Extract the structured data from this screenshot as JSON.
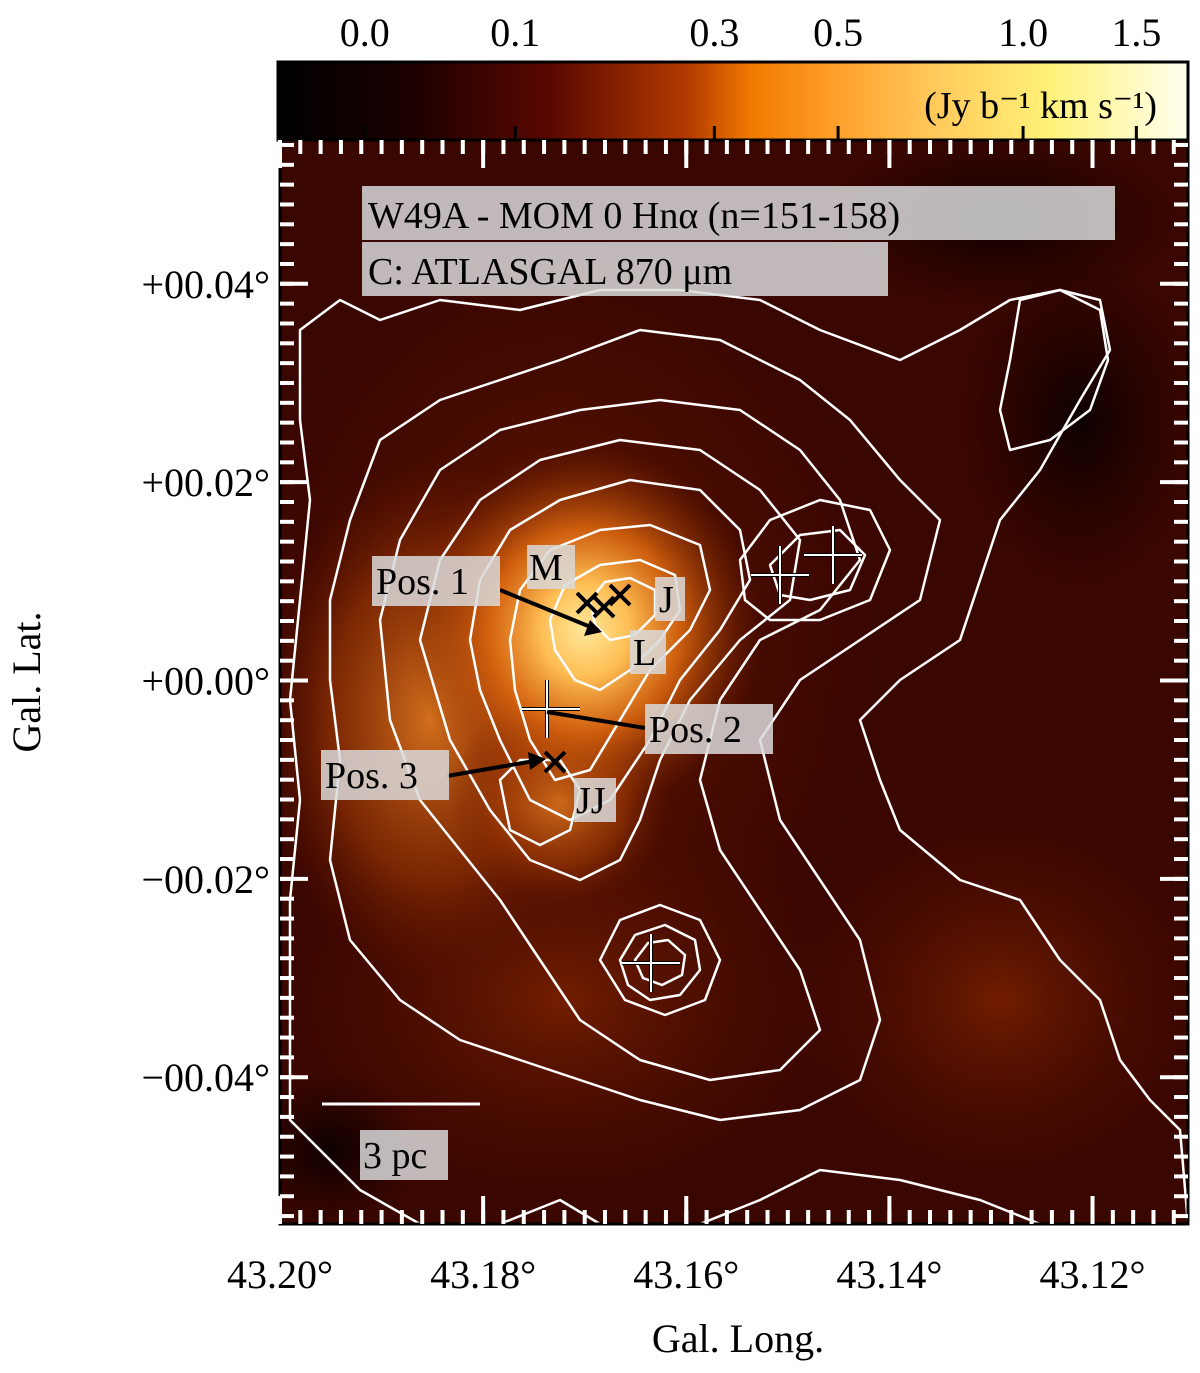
{
  "chart_data": {
    "type": "heatmap",
    "title": "W49A - MOM 0 Hnα (n=151-158)",
    "subtitle": "C: ATLASGAL 870 μm",
    "xlabel": "Gal. Long.",
    "ylabel": "Gal. Lat.",
    "x_ticks": [
      "43.20°",
      "43.18°",
      "43.16°",
      "43.14°",
      "43.12°"
    ],
    "x_tick_values": [
      43.2,
      43.18,
      43.16,
      43.14,
      43.12
    ],
    "y_ticks": [
      "+00.04°",
      "+00.02°",
      "+00.00°",
      "−00.02°",
      "−00.04°"
    ],
    "y_tick_values": [
      0.04,
      0.02,
      0.0,
      -0.02,
      -0.04
    ],
    "xlim": [
      43.2,
      43.1106
    ],
    "ylim": [
      -0.0548,
      0.0545
    ],
    "colorbar": {
      "label": "(Jy b⁻¹ km s⁻¹)",
      "ticks": [
        "0.0",
        "0.1",
        "0.3",
        "0.5",
        "1.0",
        "1.5"
      ],
      "tick_values": [
        0.0,
        0.1,
        0.3,
        0.5,
        1.0,
        1.5
      ],
      "range": [
        -0.05,
        1.8
      ]
    },
    "contours": {
      "color": "#ffffff",
      "source": "ATLASGAL 870 μm"
    },
    "sources": [
      {
        "marker": "x",
        "l": 43.1714,
        "b": 0.0082,
        "name": "M"
      },
      {
        "marker": "x",
        "l": 43.1695,
        "b": 0.0078,
        "name": "L"
      },
      {
        "marker": "x",
        "l": 43.168,
        "b": 0.009,
        "name": "J"
      },
      {
        "marker": "x",
        "l": 43.1753,
        "b": -0.0082,
        "name": "JJ"
      },
      {
        "marker": "+",
        "l": 43.1764,
        "b": -0.0031
      },
      {
        "marker": "+",
        "l": 43.1518,
        "b": 0.0113
      },
      {
        "marker": "+",
        "l": 43.1466,
        "b": 0.0133
      },
      {
        "marker": "+",
        "l": 43.1651,
        "b": -0.0286
      }
    ],
    "positions": [
      {
        "label": "Pos. 1",
        "l": 43.1706,
        "b": 0.0065
      },
      {
        "label": "Pos. 2",
        "l": 43.1764,
        "b": -0.0031
      },
      {
        "label": "Pos. 3",
        "l": 43.1753,
        "b": -0.0082
      }
    ],
    "scale_bar": {
      "label": "3 pc"
    },
    "grid": false
  },
  "colors": {
    "cmap_low": "#100000",
    "cmap_mid": "#ff8800",
    "cmap_high": "#fffde0",
    "contour": "#ffffff",
    "marker": "#000000"
  }
}
